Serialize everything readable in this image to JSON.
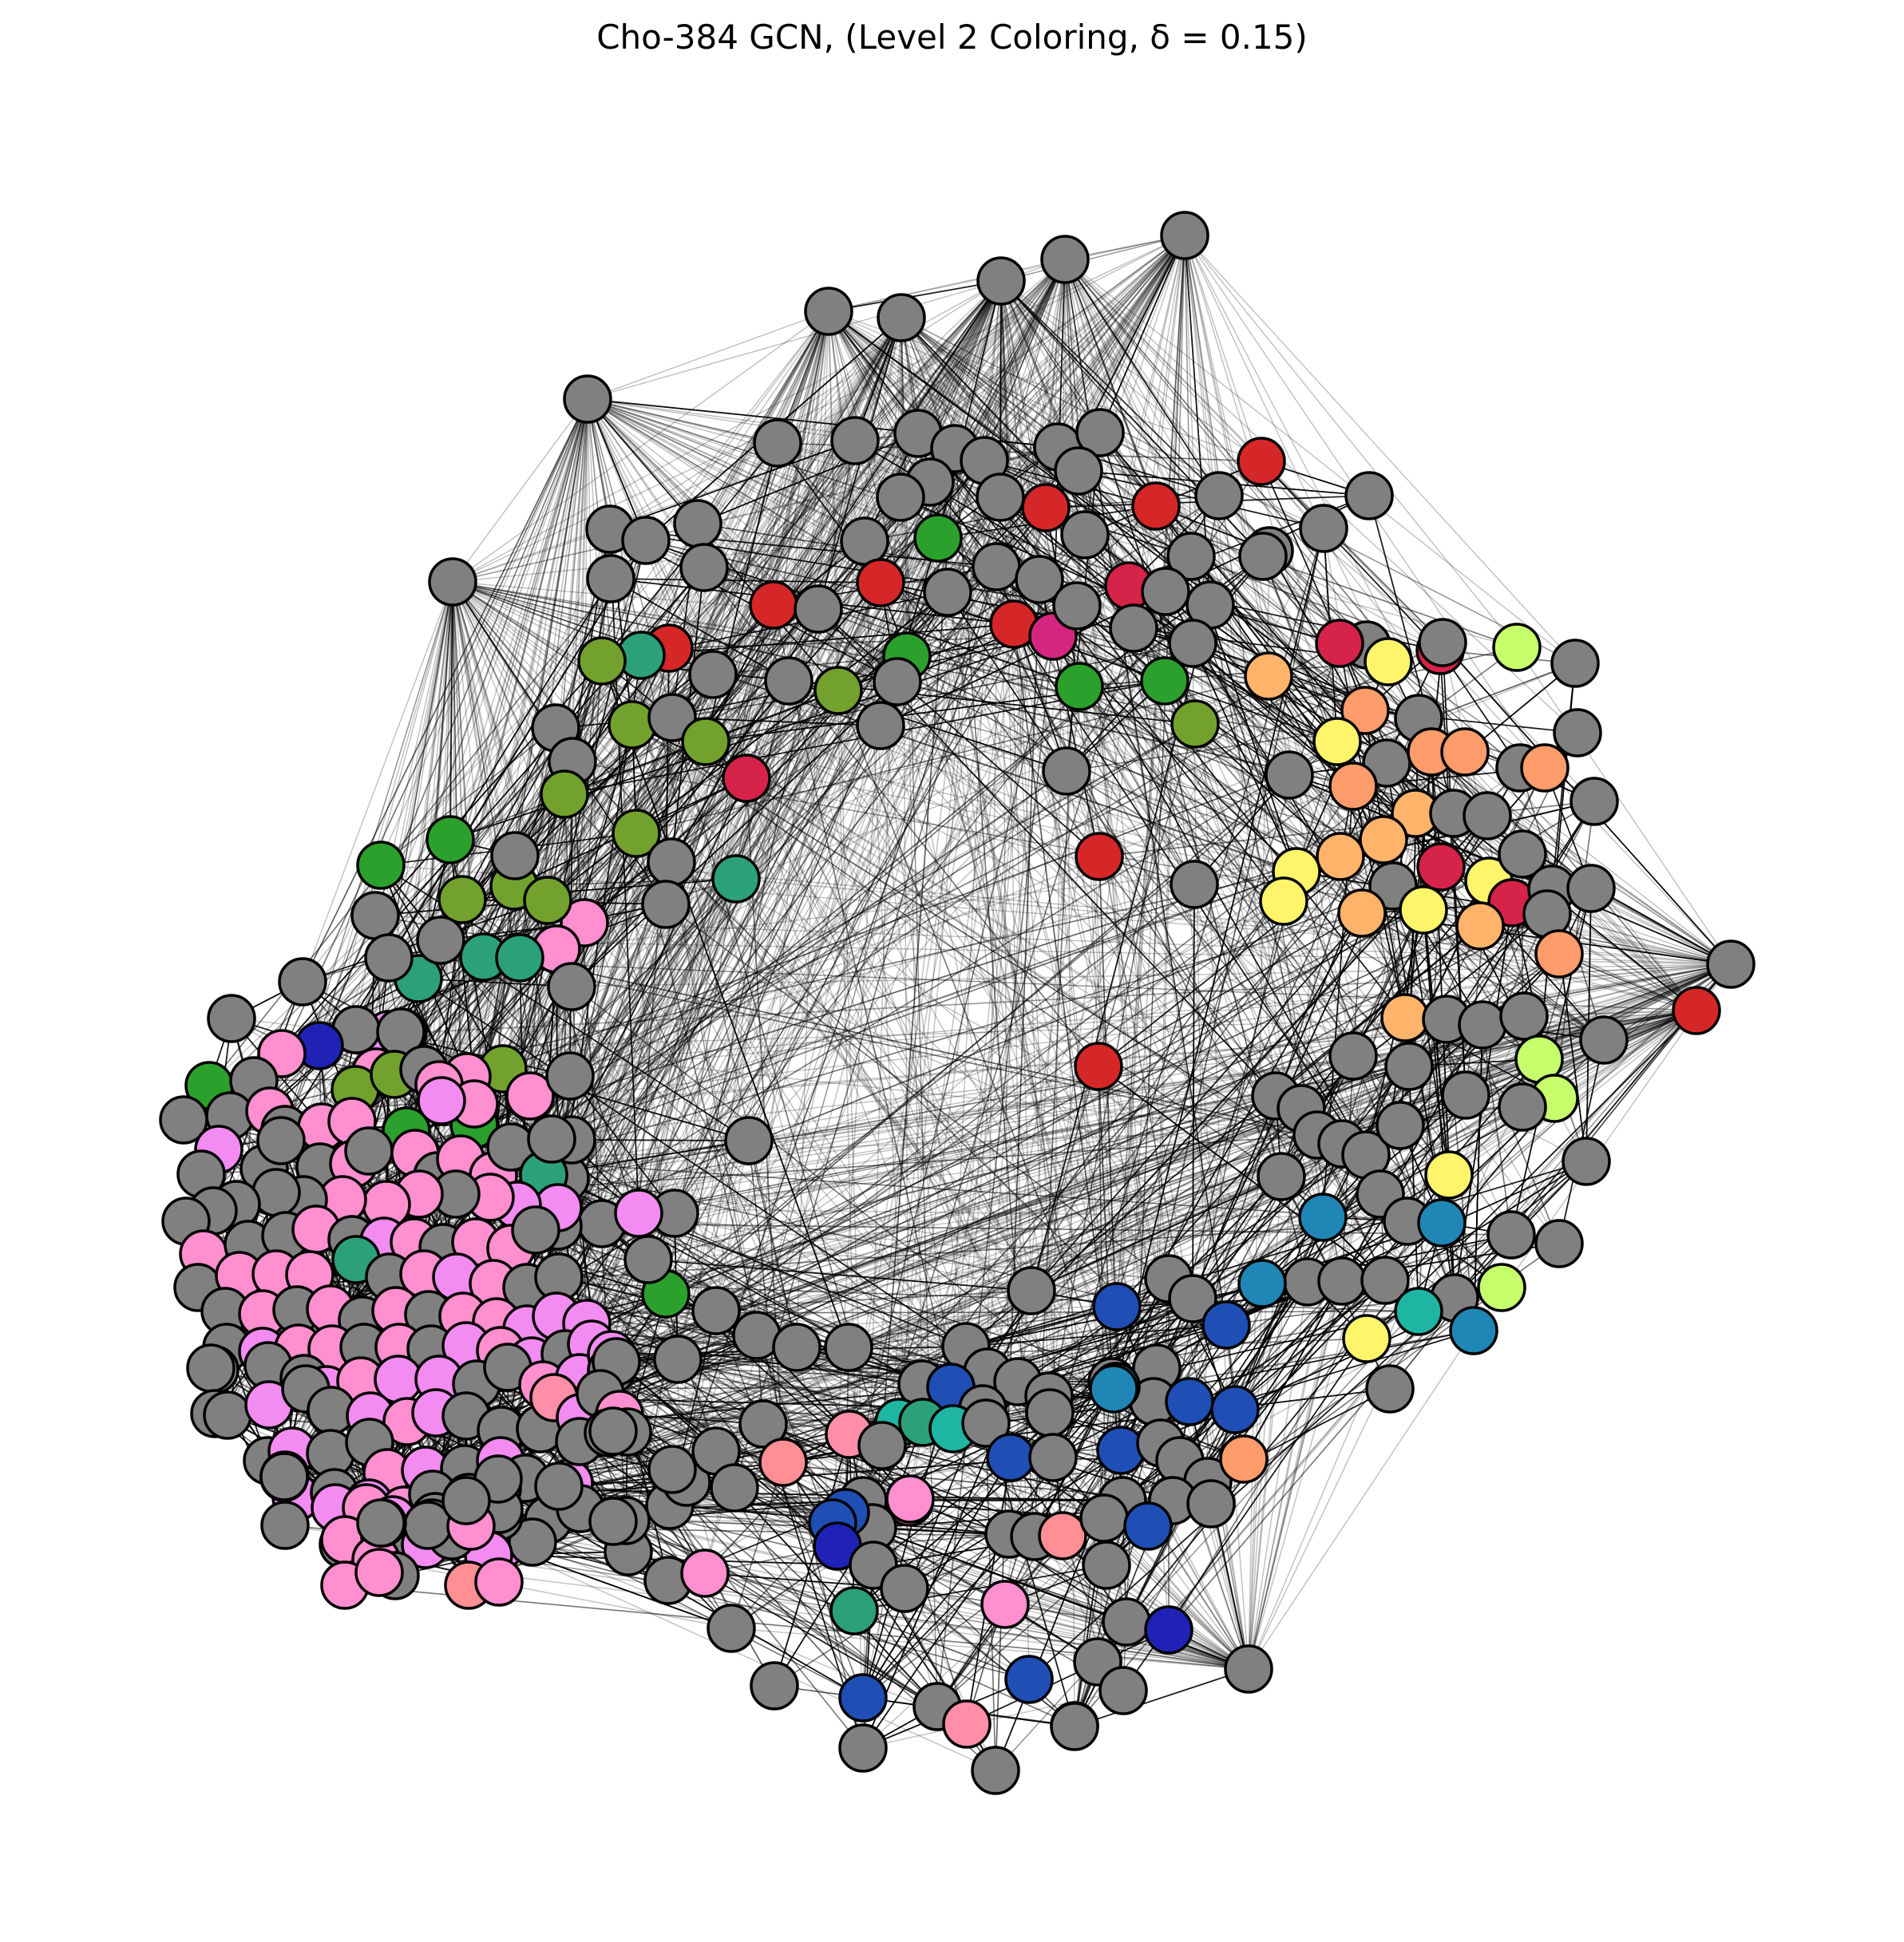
{
  "figure": {
    "title": "Cho-384 GCN, (Level 2 Coloring, δ = 0.15)"
  },
  "graph": {
    "node_count": 384,
    "layout": "force-directed ring",
    "edge_color": "#000000",
    "node_outline_color": "#000000",
    "palette": {
      "gray": "#808080",
      "red": "#d62728",
      "crimson": "#d6234a",
      "magenta": "#d4267f",
      "orchid": "#f28cf0",
      "pink": "#ff8fcf",
      "rose": "#ff8fa8",
      "salmon": "#ff8f94",
      "green": "#2ca02c",
      "olive": "#73a12e",
      "teal": "#2ca07a",
      "turquoise": "#1fb5a3",
      "cyan": "#1f9bb5",
      "steel-blue": "#1f86b5",
      "blue": "#1f4fb5",
      "navy": "#1f22b5",
      "light-orange": "#ffb36b",
      "peach": "#ff9c6b",
      "yellow": "#fff56b",
      "lime": "#c6ff6b"
    }
  }
}
